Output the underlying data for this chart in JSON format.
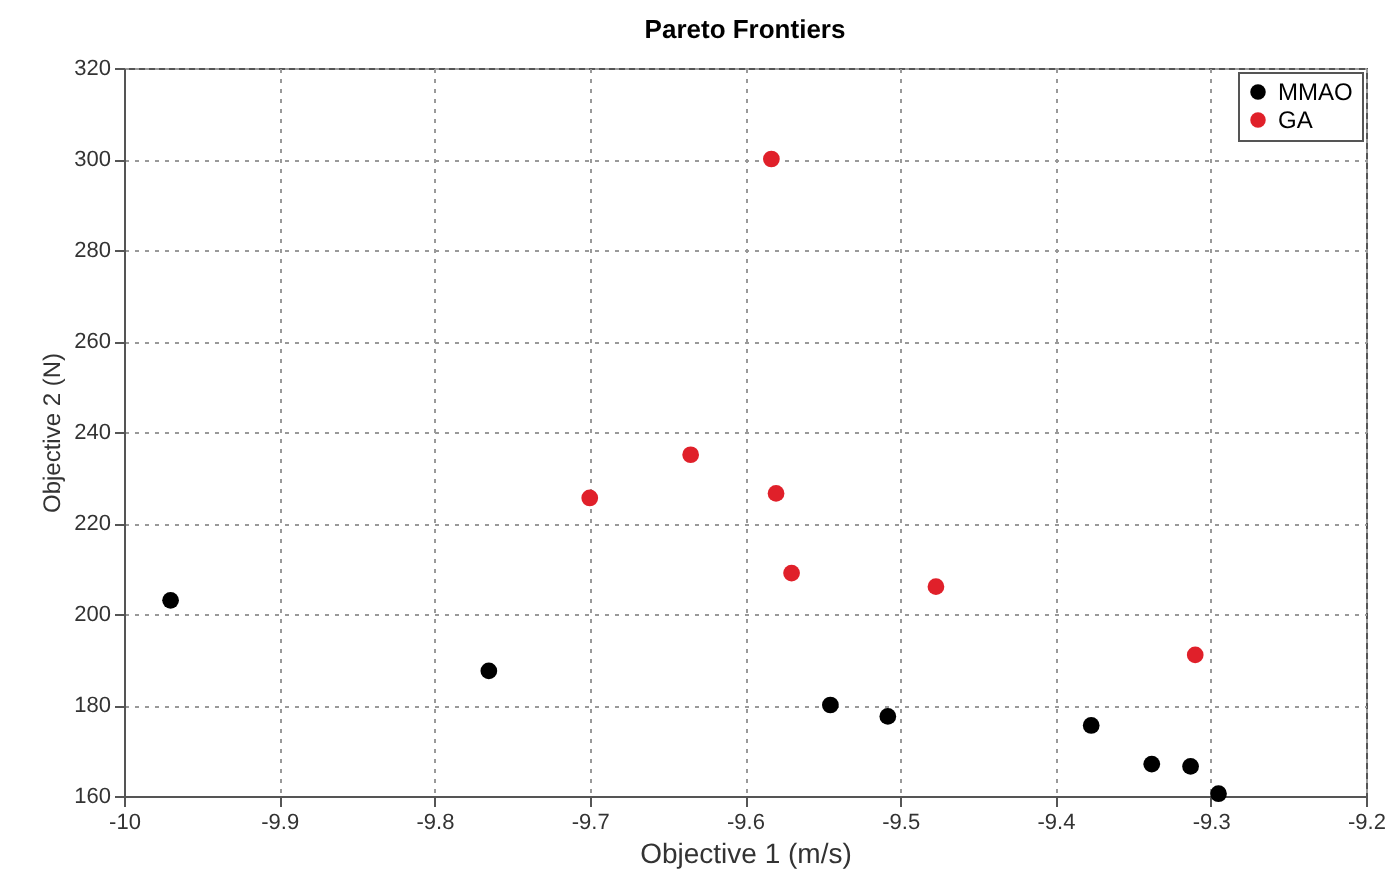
{
  "chart_data": {
    "type": "scatter",
    "title": "Pareto Frontiers",
    "xlabel": "Objective 1 (m/s)",
    "ylabel": "Objective 2 (N)",
    "xlim": [
      -10,
      -9.2
    ],
    "xticks": [
      -10,
      -9.9,
      -9.8,
      -9.7,
      -9.6,
      -9.5,
      -9.4,
      -9.3,
      -9.2
    ],
    "ylim": [
      160,
      320
    ],
    "yticks": [
      160,
      180,
      200,
      220,
      240,
      260,
      280,
      300,
      320
    ],
    "grid": true,
    "legend": "top right",
    "marker": "circle",
    "series": [
      {
        "name": "MMAO",
        "color": "#000000",
        "x": [
          -9.97,
          -9.765,
          -9.545,
          -9.508,
          -9.377,
          -9.338,
          -9.313,
          -9.295
        ],
        "values": [
          203,
          187.5,
          180,
          177.5,
          175.5,
          167,
          166.5,
          160.5
        ]
      },
      {
        "name": "GA",
        "color": "#e0202a",
        "x": [
          -9.7,
          -9.635,
          -9.583,
          -9.58,
          -9.57,
          -9.477,
          -9.31
        ],
        "values": [
          225.5,
          235,
          300,
          226.5,
          209,
          206,
          191
        ]
      }
    ]
  }
}
